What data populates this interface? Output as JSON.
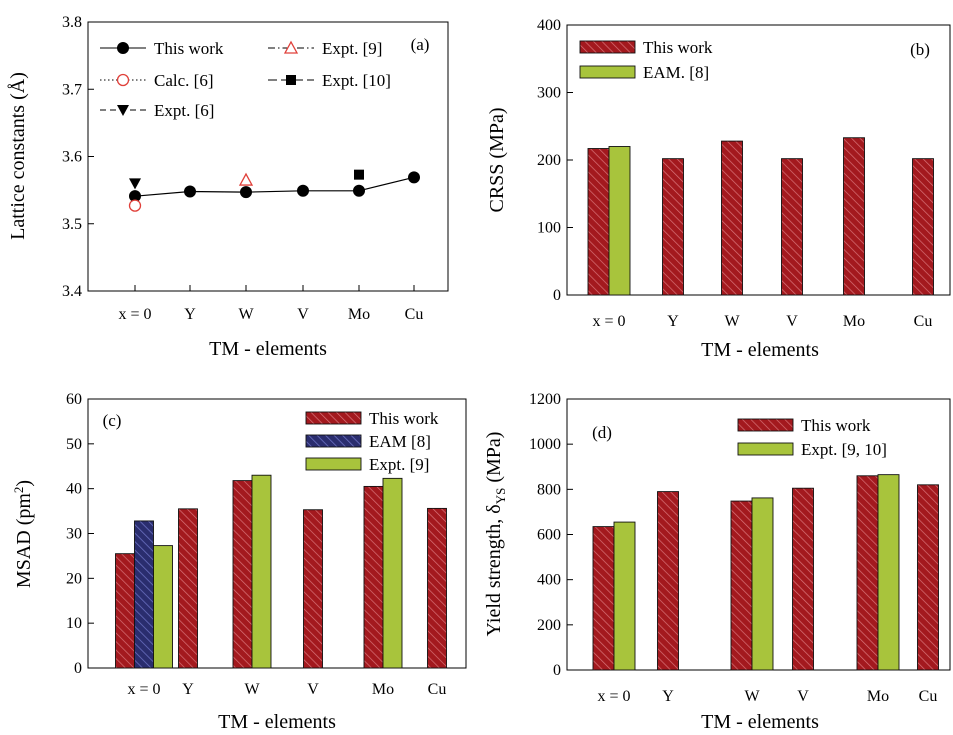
{
  "colors": {
    "this_work": "#a3191e",
    "this_work_hatch": "#d9747a",
    "green": "#a8c43c",
    "eam_navy": "#2a2d6e",
    "eam_hatch": "#6a6fc0",
    "marker_red": "#e0403a",
    "black": "#000000"
  },
  "chart_data": [
    {
      "panel": "(a)",
      "type": "line",
      "xlabel": "TM  - elements",
      "ylabel": "Lattice constants (Å)",
      "categories": [
        "x = 0",
        "Y",
        "W",
        "V",
        "Mo",
        "Cu"
      ],
      "ylim": [
        3.4,
        3.8
      ],
      "yticks": [
        "3.4",
        "3.5",
        "3.6",
        "3.7",
        "3.8"
      ],
      "grid": false,
      "legend_position": "top-left",
      "series": [
        {
          "name": "This work",
          "marker": "filled-circle",
          "line": "solid",
          "values": [
            3.541,
            3.548,
            3.547,
            3.549,
            3.549,
            3.569
          ]
        },
        {
          "name": "Calc. [6]",
          "marker": "open-circle",
          "line": "dotted",
          "values": [
            3.527,
            null,
            null,
            null,
            null,
            null
          ]
        },
        {
          "name": "Expt. [6]",
          "marker": "filled-triangle-down",
          "line": "dashed",
          "values": [
            3.56,
            null,
            null,
            null,
            null,
            null
          ]
        },
        {
          "name": "Expt. [9]",
          "marker": "open-triangle-up",
          "line": "dash-dot",
          "values": [
            null,
            null,
            3.565,
            null,
            null,
            null
          ]
        },
        {
          "name": "Expt. [10]",
          "marker": "filled-square",
          "line": "long-dash",
          "values": [
            null,
            null,
            null,
            null,
            3.573,
            null
          ]
        }
      ]
    },
    {
      "panel": "(b)",
      "type": "bar",
      "xlabel": "TM - elements",
      "ylabel": "CRSS (MPa)",
      "categories": [
        "x = 0",
        "Y",
        "W",
        "V",
        "Mo",
        "Cu"
      ],
      "ylim": [
        0,
        400
      ],
      "yticks": [
        "0",
        "100",
        "200",
        "300",
        "400"
      ],
      "grid": false,
      "legend_position": "top-left",
      "series": [
        {
          "name": "This work",
          "style": "red-hatched",
          "values": [
            217,
            202,
            228,
            202,
            233,
            202
          ]
        },
        {
          "name": "EAM. [8]",
          "style": "green",
          "values": [
            220,
            null,
            null,
            null,
            null,
            null
          ]
        }
      ]
    },
    {
      "panel": "(c)",
      "type": "bar",
      "xlabel": "TM - elements",
      "ylabel": "MSAD (pm²)",
      "categories": [
        "x = 0",
        "Y",
        "W",
        "V",
        "Mo",
        "Cu"
      ],
      "ylim": [
        0,
        60
      ],
      "yticks": [
        "0",
        "10",
        "20",
        "30",
        "40",
        "50",
        "60"
      ],
      "grid": false,
      "legend_position": "top-right",
      "series": [
        {
          "name": "This work",
          "style": "red-hatched",
          "values": [
            25.5,
            35.5,
            41.8,
            35.3,
            40.5,
            35.6
          ]
        },
        {
          "name": "EAM [8]",
          "style": "navy-hatched",
          "values": [
            32.8,
            null,
            null,
            null,
            null,
            null
          ]
        },
        {
          "name": "Expt. [9]",
          "style": "green",
          "values": [
            27.3,
            null,
            43.0,
            null,
            42.3,
            null
          ]
        }
      ]
    },
    {
      "panel": "(d)",
      "type": "bar",
      "xlabel": "TM - elements",
      "ylabel": "Yield strength, δYS (MPa)",
      "categories": [
        "x = 0",
        "Y",
        "W",
        "V",
        "Mo",
        "Cu"
      ],
      "ylim": [
        0,
        1200
      ],
      "yticks": [
        "0",
        "200",
        "400",
        "600",
        "800",
        "1000",
        "1200"
      ],
      "grid": false,
      "legend_position": "top-right",
      "series": [
        {
          "name": "This work",
          "style": "red-hatched",
          "values": [
            635,
            790,
            748,
            805,
            860,
            820
          ]
        },
        {
          "name": "Expt. [9, 10]",
          "style": "green",
          "values": [
            655,
            null,
            762,
            null,
            865,
            null
          ]
        }
      ]
    }
  ]
}
